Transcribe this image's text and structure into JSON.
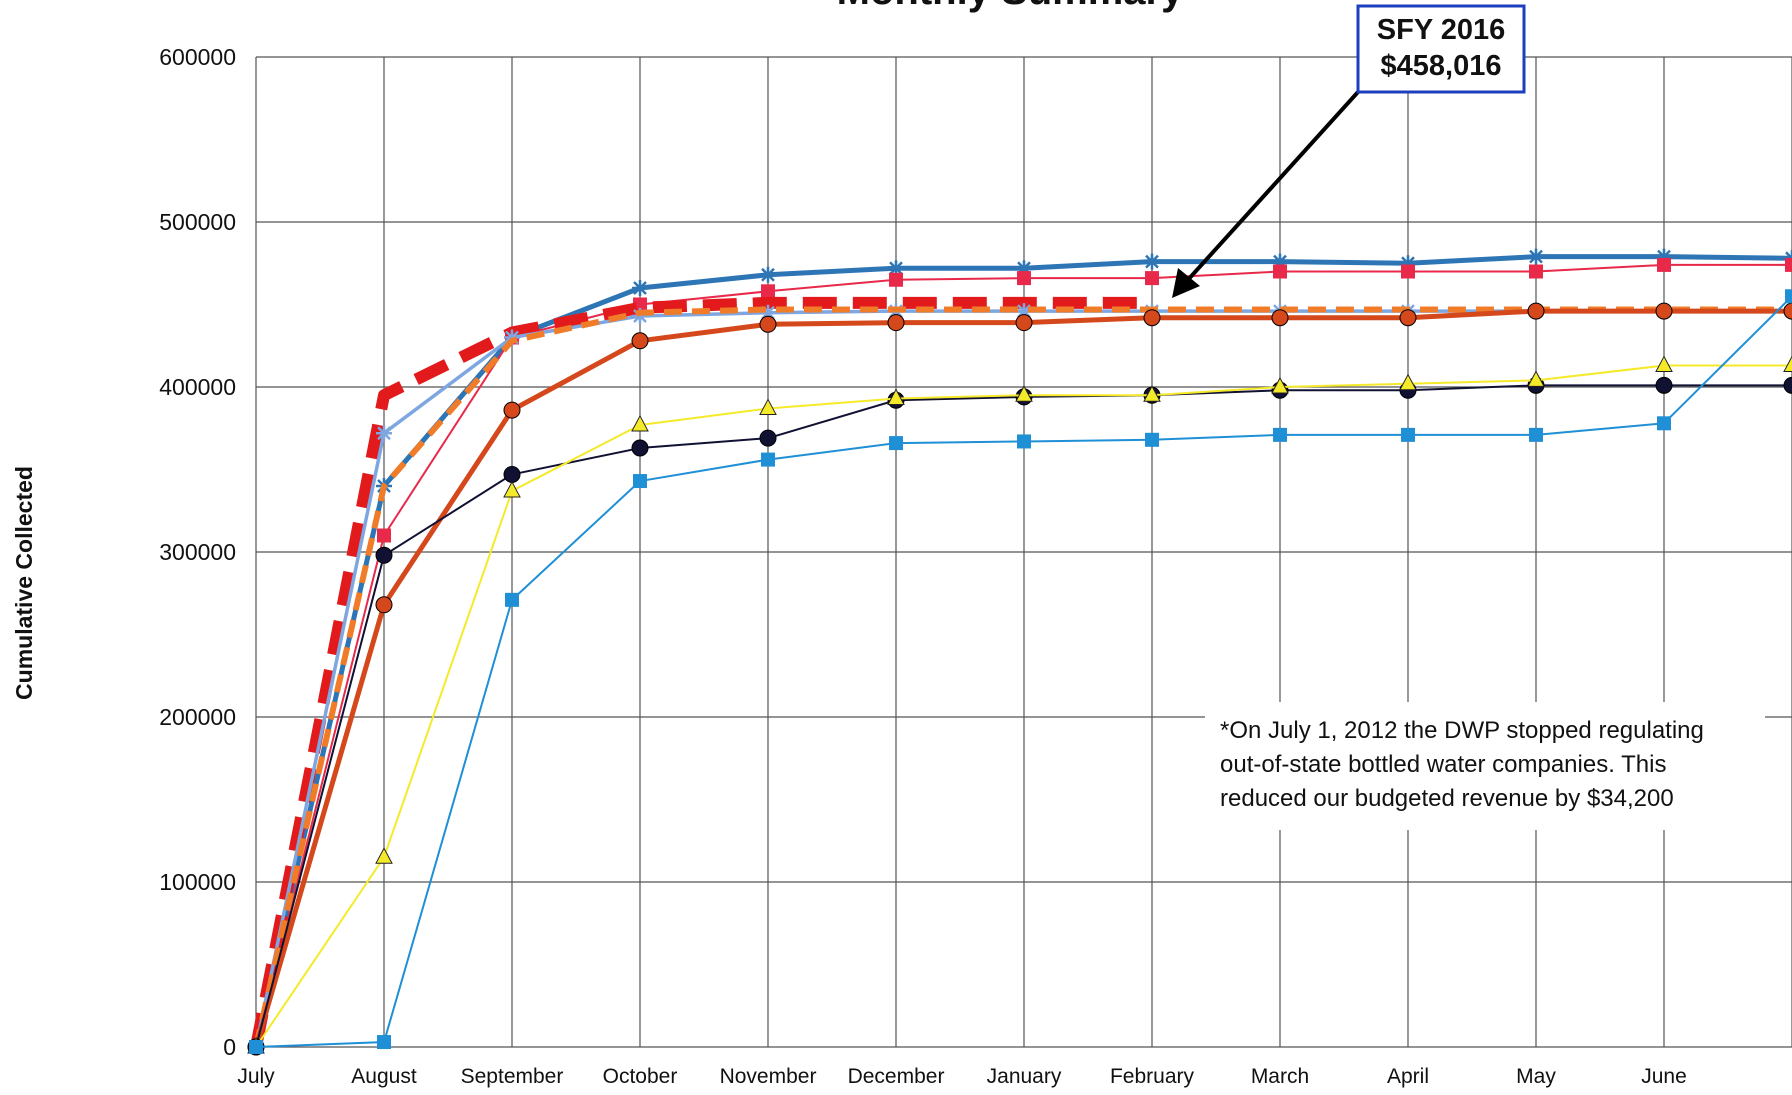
{
  "chart_data": {
    "type": "line",
    "title": "Monthly Summary",
    "y_label": "Cumulative Collected",
    "categories": [
      "July",
      "August",
      "September",
      "October",
      "November",
      "December",
      "January",
      "February",
      "March",
      "April",
      "May",
      "June",
      null
    ],
    "ylim": [
      0,
      600000
    ],
    "yticks": [
      0,
      100000,
      200000,
      300000,
      400000,
      500000,
      600000
    ],
    "grid": true,
    "series": [
      {
        "color": "#2e75b6",
        "style": "thick",
        "marker": "asterisk",
        "values": [
          0,
          340000,
          430000,
          460000,
          468000,
          472000,
          472000,
          476000,
          476000,
          475000,
          479000,
          479000,
          478000
        ]
      },
      {
        "color": "#e8294a",
        "style": "thin",
        "marker": "square",
        "values": [
          0,
          310000,
          430000,
          450000,
          458000,
          465000,
          466000,
          466000,
          470000,
          470000,
          470000,
          474000,
          474000
        ]
      },
      {
        "color": "#e31a1c",
        "style": "thick-dashed",
        "marker": "none",
        "values": [
          0,
          395000,
          433000,
          448000,
          451000,
          451000,
          451000,
          451000,
          null,
          null,
          null,
          null,
          null
        ]
      },
      {
        "color": "#7ea6e0",
        "style": "medium",
        "marker": "star",
        "values": [
          0,
          372000,
          430000,
          443000,
          445000,
          446000,
          446000,
          446000,
          446000,
          446000,
          446000,
          446000,
          446000
        ]
      },
      {
        "color": "#f07c2a",
        "style": "dashed",
        "marker": "none",
        "values": [
          0,
          340000,
          428000,
          445000,
          447000,
          447000,
          447000,
          447000,
          447000,
          447000,
          447000,
          447000,
          447000
        ]
      },
      {
        "color": "#d4481c",
        "style": "thick",
        "marker": "circle",
        "values": [
          0,
          268000,
          386000,
          428000,
          438000,
          439000,
          439000,
          442000,
          442000,
          442000,
          446000,
          446000,
          446000
        ]
      },
      {
        "color": "#111133",
        "style": "thin",
        "marker": "circle",
        "values": [
          0,
          298000,
          347000,
          363000,
          369000,
          392000,
          394000,
          395000,
          398000,
          398000,
          401000,
          401000,
          401000
        ]
      },
      {
        "color": "#f5ea2a",
        "style": "thin",
        "marker": "triangle",
        "values": [
          0,
          115000,
          337000,
          377000,
          387000,
          393000,
          395000,
          395000,
          400000,
          402000,
          404000,
          413000,
          413000
        ]
      },
      {
        "color": "#1f8fd6",
        "style": "thin",
        "marker": "square",
        "values": [
          0,
          3000,
          271000,
          343000,
          356000,
          366000,
          367000,
          368000,
          371000,
          371000,
          371000,
          378000,
          455000
        ]
      }
    ],
    "callout": {
      "lines": [
        "SFY 2016",
        "$458,016"
      ]
    },
    "note": {
      "lines": [
        "*On July 1, 2012 the DWP stopped regulating",
        "out-of-state bottled water companies.  This",
        "reduced our budgeted revenue by $34,200"
      ]
    }
  }
}
